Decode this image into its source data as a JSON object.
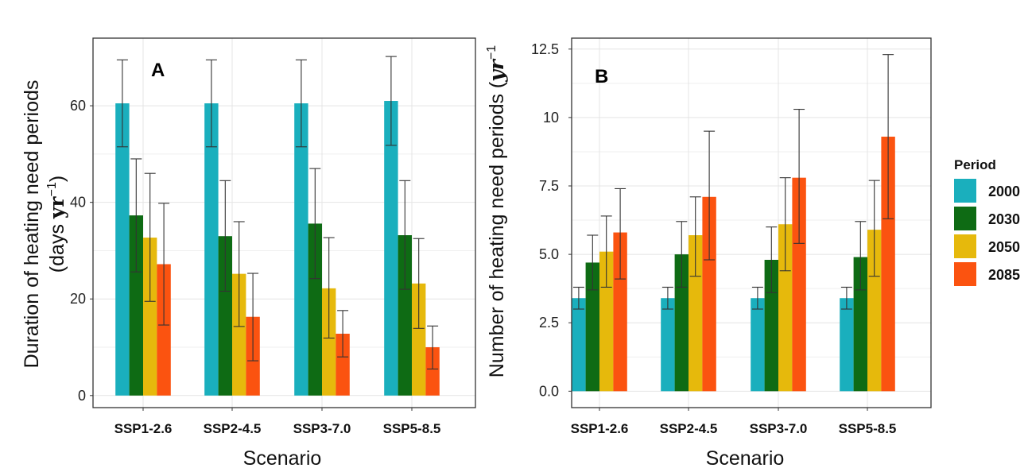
{
  "legend": {
    "title": "Period",
    "entries": [
      {
        "label": "2000",
        "color": "#1aafbd"
      },
      {
        "label": "2030",
        "color": "#0e6b14"
      },
      {
        "label": "2050",
        "color": "#e6b90c"
      },
      {
        "label": "2085",
        "color": "#fb5310"
      }
    ]
  },
  "chart_data": [
    {
      "type": "bar",
      "panel_label": "A",
      "title": "",
      "xlabel": "Scenario",
      "ylabel_line1": "Duration of heating need periods",
      "ylabel_line2_prefix": "(days ",
      "ylabel_unit": "yr",
      "ylabel_exp": "−1",
      "ylabel_line2_suffix": ")",
      "ylim": [
        -2.5,
        74
      ],
      "yticks": [
        0,
        20,
        40,
        60
      ],
      "ytick_labels": [
        "0",
        "20",
        "40",
        "60"
      ],
      "grid": true,
      "categories": [
        "SSP1-2.6",
        "SSP2-4.5",
        "SSP3-7.0",
        "SSP5-8.5"
      ],
      "series": [
        {
          "name": "2000",
          "color": "#1aafbd",
          "values": [
            60.5,
            60.5,
            60.5,
            61.0
          ],
          "err_low": [
            51.5,
            51.5,
            51.5,
            51.8
          ],
          "err_high": [
            69.5,
            69.5,
            69.5,
            70.2
          ]
        },
        {
          "name": "2030",
          "color": "#0e6b14",
          "values": [
            37.3,
            33.0,
            35.6,
            33.2
          ],
          "err_low": [
            25.6,
            21.6,
            24.2,
            22.0
          ],
          "err_high": [
            49.0,
            44.5,
            47.0,
            44.5
          ]
        },
        {
          "name": "2050",
          "color": "#e6b90c",
          "values": [
            32.7,
            25.2,
            22.2,
            23.2
          ],
          "err_low": [
            19.5,
            14.3,
            11.9,
            13.9
          ],
          "err_high": [
            46.0,
            36.0,
            32.7,
            32.5
          ]
        },
        {
          "name": "2085",
          "color": "#fb5310",
          "values": [
            27.2,
            16.3,
            12.8,
            10.0
          ],
          "err_low": [
            14.6,
            7.2,
            8.0,
            5.5
          ],
          "err_high": [
            39.8,
            25.3,
            17.6,
            14.4
          ]
        }
      ]
    },
    {
      "type": "bar",
      "panel_label": "B",
      "title": "",
      "xlabel": "Scenario",
      "ylabel_prefix": "Number of heating need periods (",
      "ylabel_unit": "yr",
      "ylabel_exp": "−1",
      "ylim": [
        -0.6,
        12.9
      ],
      "yticks": [
        0,
        2.5,
        5,
        7.5,
        10,
        12.5
      ],
      "ytick_labels": [
        "0.0",
        "2.5",
        "5.0",
        "7.5",
        "10",
        "12.5"
      ],
      "grid": true,
      "categories": [
        "SSP1-2.6",
        "SSP2-4.5",
        "SSP3-7.0",
        "SSP5-8.5"
      ],
      "series": [
        {
          "name": "2000",
          "color": "#1aafbd",
          "values": [
            3.4,
            3.4,
            3.4,
            3.4
          ],
          "err_low": [
            3.0,
            3.0,
            3.0,
            3.0
          ],
          "err_high": [
            3.8,
            3.8,
            3.8,
            3.8
          ]
        },
        {
          "name": "2030",
          "color": "#0e6b14",
          "values": [
            4.7,
            5.0,
            4.8,
            4.9
          ],
          "err_low": [
            3.7,
            3.8,
            3.6,
            3.7
          ],
          "err_high": [
            5.7,
            6.2,
            6.0,
            6.2
          ]
        },
        {
          "name": "2050",
          "color": "#e6b90c",
          "values": [
            5.1,
            5.7,
            6.1,
            5.9
          ],
          "err_low": [
            3.8,
            4.2,
            4.4,
            4.2
          ],
          "err_high": [
            6.4,
            7.1,
            7.8,
            7.7
          ]
        },
        {
          "name": "2085",
          "color": "#fb5310",
          "values": [
            5.8,
            7.1,
            7.8,
            9.3
          ],
          "err_low": [
            4.1,
            4.8,
            5.4,
            6.3
          ],
          "err_high": [
            7.4,
            9.5,
            10.3,
            12.3
          ]
        }
      ]
    }
  ]
}
